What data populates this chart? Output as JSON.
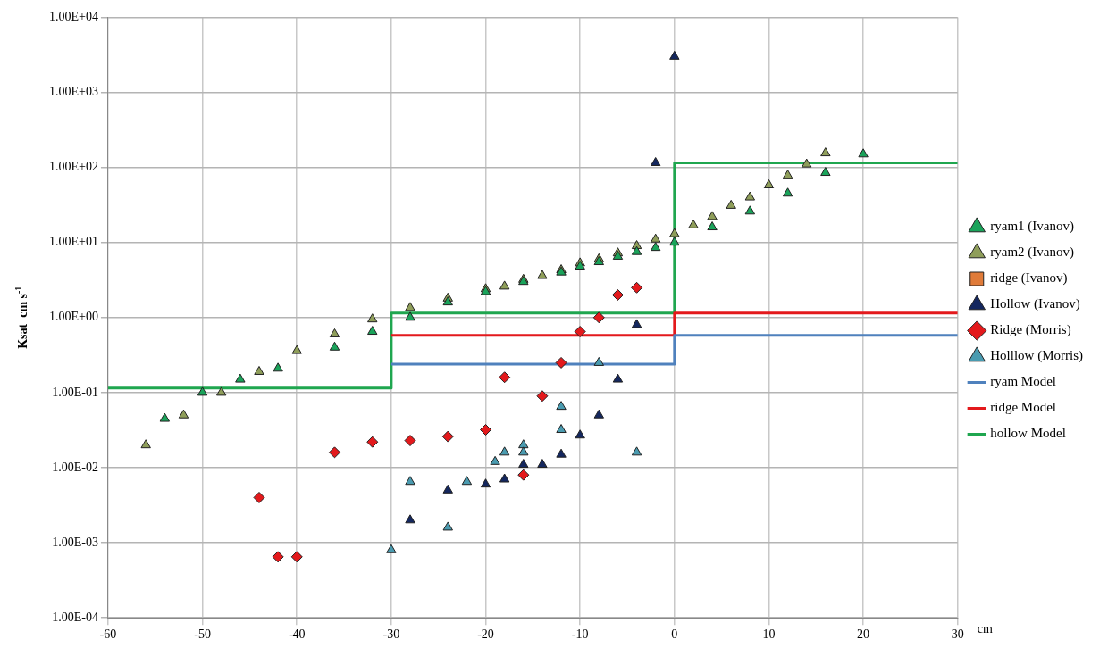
{
  "chart_data": {
    "type": "scatter",
    "xlabel": "cm",
    "ylabel": "Ksat  cm s$^{-1}$",
    "log": "y",
    "grid": true,
    "legend": "right",
    "xlim": [
      -60,
      30
    ],
    "xticks": [
      -60,
      -50,
      -40,
      -30,
      -20,
      -10,
      0,
      10,
      20,
      30
    ],
    "ylim": [
      0.0001,
      10000
    ],
    "yticks": [
      {
        "value": 0.0001,
        "label": "1.00E-04"
      },
      {
        "value": 0.001,
        "label": "1.00E-03"
      },
      {
        "value": 0.01,
        "label": "1.00E-02"
      },
      {
        "value": 0.1,
        "label": "1.00E-01"
      },
      {
        "value": 1,
        "label": "1.00E+00"
      },
      {
        "value": 10,
        "label": "1.00E+01"
      },
      {
        "value": 100,
        "label": "1.00E+02"
      },
      {
        "value": 1000,
        "label": "1.00E+03"
      },
      {
        "value": 10000,
        "label": "1.00E+04"
      }
    ],
    "series": [
      {
        "name": "ryam1 (Ivanov)",
        "color": "#1aa35a",
        "marker": "triangle",
        "x": [
          -54,
          -50,
          -46,
          -42,
          -36,
          -32,
          -28,
          -24,
          -20,
          -16,
          -12,
          -10,
          -8,
          -6,
          -4,
          -2,
          0,
          4,
          8,
          12,
          16,
          20
        ],
        "values": [
          0.045,
          0.1,
          0.15,
          0.21,
          0.4,
          0.65,
          1.0,
          1.6,
          2.2,
          3.0,
          4.0,
          4.8,
          5.5,
          6.5,
          7.5,
          8.5,
          10,
          16,
          26,
          45,
          85,
          150
        ]
      },
      {
        "name": "ryam2 (Ivanov)",
        "color": "#8f9e5a",
        "marker": "triangle",
        "x": [
          -56,
          -52,
          -48,
          -44,
          -40,
          -36,
          -32,
          -28,
          -24,
          -20,
          -18,
          -16,
          -14,
          -12,
          -10,
          -8,
          -6,
          -4,
          -2,
          0,
          2,
          4,
          6,
          8,
          10,
          12,
          14,
          16
        ],
        "values": [
          0.02,
          0.05,
          0.1,
          0.19,
          0.36,
          0.6,
          0.95,
          1.35,
          1.8,
          2.4,
          2.6,
          3.2,
          3.6,
          4.3,
          5.3,
          6.0,
          7.2,
          9.0,
          11,
          13,
          17,
          22,
          31,
          40,
          58,
          78,
          110,
          155
        ]
      },
      {
        "name": "ridge (Ivanov)",
        "color": "#e07b39",
        "marker": "square"
      },
      {
        "name": "Hollow (Ivanov)",
        "color": "#14275e",
        "marker": "triangle",
        "x": [
          0,
          -2,
          -4,
          -6,
          -8,
          -10,
          -12,
          -14,
          -16,
          -18,
          -20,
          -24,
          -28
        ],
        "values": [
          3000,
          115,
          0.8,
          0.15,
          0.05,
          0.027,
          0.015,
          0.011,
          0.011,
          0.007,
          0.006,
          0.005,
          0.002
        ]
      },
      {
        "name": "Ridge (Morris)",
        "color": "#e3191c",
        "marker": "diamond",
        "x": [
          -4,
          -6,
          -8,
          -10,
          -12,
          -14,
          -18,
          -20,
          -24,
          -28,
          -32,
          -36,
          -16,
          -44,
          -42,
          -40
        ],
        "values": [
          2.5,
          2.0,
          1.0,
          0.65,
          0.25,
          0.09,
          0.16,
          0.032,
          0.026,
          0.023,
          0.022,
          0.016,
          0.008,
          0.004,
          0.00065,
          0.00065
        ]
      },
      {
        "name": "Holllow (Morris)",
        "color": "#4a9bb0",
        "marker": "triangle",
        "x": [
          -8,
          -12,
          -12,
          -16,
          -16,
          -18,
          -19,
          -22,
          -28,
          -24,
          -30,
          -4
        ],
        "values": [
          0.25,
          0.065,
          0.032,
          0.02,
          0.016,
          0.016,
          0.012,
          0.0065,
          0.0065,
          0.0016,
          0.0008,
          0.016
        ]
      },
      {
        "name": "ryam Model",
        "type": "line",
        "color": "#4f81bd",
        "marker": "none",
        "x": [
          -30,
          0,
          0,
          30
        ],
        "values": [
          0.24,
          0.24,
          0.58,
          0.58
        ]
      },
      {
        "name": "ridge Model",
        "type": "line",
        "color": "#e3191c",
        "marker": "none",
        "x": [
          -30,
          0,
          0,
          30
        ],
        "values": [
          0.58,
          0.58,
          1.15,
          1.15
        ]
      },
      {
        "name": "hollow Model",
        "type": "line",
        "color": "#1fa64f",
        "marker": "none",
        "x": [
          -60,
          -30,
          -30,
          0,
          0,
          30
        ],
        "values": [
          0.115,
          0.115,
          1.15,
          1.15,
          115,
          115
        ]
      }
    ]
  }
}
